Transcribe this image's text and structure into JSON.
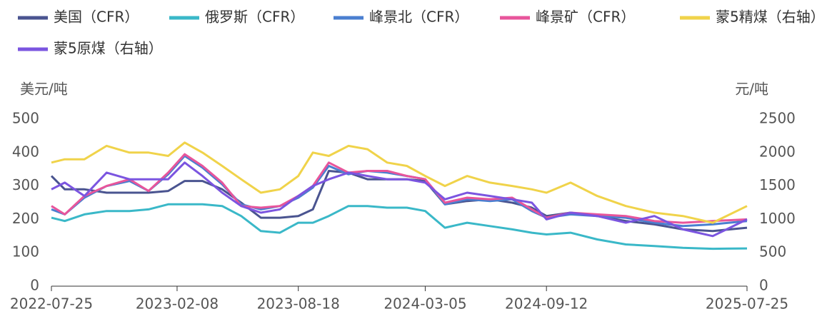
{
  "chart_data": {
    "type": "line",
    "y_label": "美元/吨",
    "y2_label": "元/吨",
    "x": [
      "2022-07-25",
      "2022-08-15",
      "2022-09-15",
      "2022-10-20",
      "2022-11-25",
      "2022-12-25",
      "2023-01-25",
      "2023-02-20",
      "2023-03-20",
      "2023-04-20",
      "2023-05-20",
      "2023-06-20",
      "2023-07-20",
      "2023-08-18",
      "2023-09-10",
      "2023-10-05",
      "2023-11-05",
      "2023-12-05",
      "2024-01-05",
      "2024-02-05",
      "2024-03-05",
      "2024-04-05",
      "2024-05-10",
      "2024-06-15",
      "2024-07-20",
      "2024-08-20",
      "2024-09-12",
      "2024-10-20",
      "2024-12-01",
      "2025-01-15",
      "2025-03-01",
      "2025-04-15",
      "2025-06-01",
      "2025-07-25"
    ],
    "xlim": [
      "2022-07-25",
      "2025-07-25"
    ],
    "xticks": [
      "2022-07-25",
      "2023-02-08",
      "2023-08-18",
      "2024-03-05",
      "2024-09-12",
      "2025-07-25"
    ],
    "ylim": [
      0,
      500
    ],
    "yticks": [
      0,
      100,
      200,
      300,
      400,
      500
    ],
    "y2lim": [
      0,
      2500
    ],
    "y2ticks": [
      0,
      500,
      1000,
      1500,
      2000,
      2500
    ],
    "grid": false,
    "series": [
      {
        "name": "美国（CFR）",
        "color": "#4a5490",
        "values": [
          330,
          290,
          290,
          280,
          280,
          280,
          285,
          315,
          315,
          290,
          250,
          205,
          205,
          210,
          230,
          345,
          340,
          320,
          320,
          320,
          315,
          245,
          255,
          260,
          250,
          235,
          210,
          220,
          210,
          195,
          185,
          170,
          165,
          175
        ]
      },
      {
        "name": "俄罗斯（CFR）",
        "color": "#3ab8c8",
        "values": [
          205,
          195,
          215,
          225,
          225,
          230,
          245,
          245,
          245,
          240,
          210,
          165,
          160,
          190,
          190,
          210,
          240,
          240,
          235,
          235,
          225,
          175,
          190,
          180,
          170,
          160,
          155,
          160,
          140,
          125,
          120,
          115,
          112,
          113
        ]
      },
      {
        "name": "峰景北（CFR）",
        "color": "#4a7fd0",
        "values": [
          230,
          215,
          265,
          300,
          315,
          285,
          335,
          390,
          355,
          305,
          245,
          230,
          240,
          265,
          295,
          360,
          335,
          345,
          340,
          330,
          320,
          245,
          260,
          255,
          260,
          225,
          205,
          215,
          210,
          205,
          190,
          180,
          185,
          195
        ]
      },
      {
        "name": "峰景矿（CFR）",
        "color": "#e8559b",
        "values": [
          240,
          215,
          270,
          300,
          320,
          285,
          340,
          395,
          360,
          310,
          240,
          235,
          240,
          270,
          300,
          370,
          340,
          345,
          345,
          330,
          320,
          250,
          265,
          260,
          265,
          230,
          205,
          220,
          215,
          210,
          195,
          190,
          195,
          200
        ]
      },
      {
        "name": "蒙5精煤（右轴）",
        "color": "#f0d34a",
        "axis": "y2",
        "values": [
          1850,
          1900,
          1900,
          2100,
          2000,
          2000,
          1950,
          2150,
          2000,
          1800,
          1600,
          1400,
          1450,
          1650,
          2000,
          1950,
          2100,
          2050,
          1850,
          1800,
          1650,
          1500,
          1650,
          1550,
          1500,
          1450,
          1400,
          1550,
          1350,
          1200,
          1100,
          1050,
          950,
          1200
        ]
      },
      {
        "name": "蒙5原煤（右轴）",
        "color": "#7b55e0",
        "axis": "y2",
        "values": [
          1450,
          1550,
          1350,
          1700,
          1600,
          1600,
          1600,
          1850,
          1650,
          1400,
          1200,
          1100,
          1150,
          1350,
          1500,
          1600,
          1700,
          1650,
          1600,
          1600,
          1550,
          1300,
          1400,
          1350,
          1300,
          1250,
          1000,
          1100,
          1050,
          950,
          1050,
          850,
          750,
          1000
        ]
      }
    ]
  }
}
